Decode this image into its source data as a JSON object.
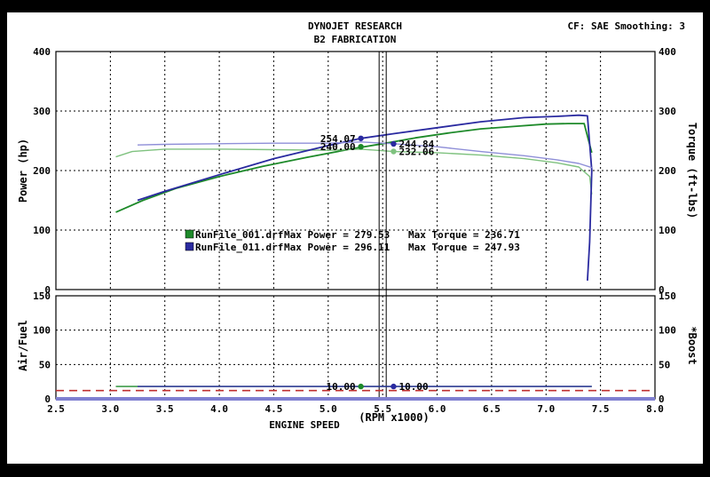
{
  "header": {
    "title": "DYNOJET RESEARCH",
    "subtitle": "B2 FABRICATION",
    "settings": "CF: SAE  Smoothing: 3"
  },
  "colors": {
    "background_frame": "#000000",
    "paper": "#ffffff",
    "run1": "#1e8a2a",
    "run1_light": "#7fc27f",
    "run2": "#2a2aa0",
    "run2_light": "#8f8fd8",
    "boost_dashed": "#c03030",
    "axis_text": "#000000"
  },
  "chart_data": [
    {
      "type": "line",
      "panel": "power-torque",
      "xlabel": "ENGINE SPEED",
      "xunit": "(RPM x1000)",
      "ylabel_left": "Power (hp)",
      "ylabel_right": "Torque (ft-lbs)",
      "xlim": [
        2.5,
        8.0
      ],
      "ylim": [
        0,
        400
      ],
      "xticks": [
        "2.5",
        "3.0",
        "3.5",
        "4.0",
        "4.5",
        "5.0",
        "5.5",
        "6.0",
        "6.5",
        "7.0",
        "7.5",
        "8.0"
      ],
      "yticks_left": [
        "0",
        "100",
        "200",
        "300",
        "400"
      ],
      "yticks_right": [
        "0",
        "100",
        "200",
        "300",
        "400"
      ],
      "grid": true,
      "cursor_x": 5.5,
      "series": [
        {
          "name": "RunFile_001.drf",
          "kind": "power",
          "color": "#1e8a2a",
          "x": [
            3.05,
            3.3,
            3.6,
            4.0,
            4.4,
            4.8,
            5.2,
            5.5,
            5.8,
            6.1,
            6.4,
            6.7,
            7.0,
            7.2,
            7.35,
            7.42
          ],
          "y": [
            130,
            150,
            170,
            190,
            207,
            222,
            236,
            245,
            255,
            263,
            270,
            274,
            278,
            279,
            279,
            230
          ]
        },
        {
          "name": "RunFile_001.drf",
          "kind": "torque",
          "color": "#7fc27f",
          "x": [
            3.05,
            3.2,
            3.5,
            4.0,
            4.5,
            5.0,
            5.3,
            5.6,
            6.0,
            6.4,
            6.8,
            7.1,
            7.3,
            7.4,
            7.42
          ],
          "y": [
            223,
            232,
            236,
            236,
            235,
            234,
            236,
            232,
            230,
            226,
            220,
            213,
            206,
            190,
            160
          ]
        },
        {
          "name": "RunFile_011.drf",
          "kind": "power",
          "color": "#2a2aa0",
          "x": [
            3.25,
            3.5,
            4.0,
            4.5,
            5.0,
            5.3,
            5.6,
            6.0,
            6.4,
            6.8,
            7.1,
            7.3,
            7.38,
            7.42,
            7.4,
            7.38
          ],
          "y": [
            150,
            165,
            193,
            220,
            242,
            254,
            262,
            272,
            282,
            289,
            291,
            293,
            292,
            200,
            80,
            15
          ]
        },
        {
          "name": "RunFile_011.drf",
          "kind": "torque",
          "color": "#8f8fd8",
          "x": [
            3.25,
            3.5,
            4.0,
            4.5,
            5.0,
            5.3,
            5.6,
            6.0,
            6.4,
            6.8,
            7.1,
            7.3,
            7.42
          ],
          "y": [
            243,
            244,
            245,
            246,
            246,
            248,
            245,
            240,
            232,
            225,
            218,
            212,
            205
          ]
        }
      ],
      "cursor_markers": [
        {
          "label": "254.07",
          "x": 5.3,
          "y": 254.07,
          "color": "#2a2aa0",
          "side": "left"
        },
        {
          "label": "240.00",
          "x": 5.3,
          "y": 240.0,
          "color": "#1e8a2a",
          "side": "left"
        },
        {
          "label": "244.84",
          "x": 5.6,
          "y": 244.84,
          "color": "#2a2aa0",
          "side": "right"
        },
        {
          "label": "232.06",
          "x": 5.6,
          "y": 232.06,
          "color": "#7fc27f",
          "side": "right"
        }
      ],
      "legend": [
        {
          "file": "RunFile_001.drf",
          "power_text": "Max Power = 279.53",
          "torque_text": "Max Torque = 236.71",
          "color": "#1e8a2a"
        },
        {
          "file": "RunFile_011.drf",
          "power_text": "Max Power = 296.11",
          "torque_text": "Max Torque = 247.93",
          "color": "#2a2aa0"
        }
      ]
    },
    {
      "type": "line",
      "panel": "airfuel-boost",
      "ylabel_left": "Air/Fuel",
      "ylabel_right": "*Boost",
      "xlim": [
        2.5,
        8.0
      ],
      "ylim": [
        0,
        150
      ],
      "yticks_left": [
        "0",
        "50",
        "100",
        "150"
      ],
      "yticks_right": [
        "0",
        "50",
        "100",
        "150"
      ],
      "grid": true,
      "series": [
        {
          "name": "RunFile_001.drf",
          "kind": "airfuel",
          "color": "#1e8a2a",
          "x": [
            3.05,
            7.42
          ],
          "y": [
            18,
            18
          ]
        },
        {
          "name": "RunFile_011.drf",
          "kind": "airfuel",
          "color": "#2a2aa0",
          "x": [
            3.25,
            7.42
          ],
          "y": [
            18,
            18
          ]
        },
        {
          "name": "boost",
          "kind": "boost",
          "color": "#c03030",
          "x": [
            2.5,
            8.0
          ],
          "y": [
            12,
            12
          ],
          "dashed": true
        }
      ],
      "cursor_markers": [
        {
          "label": "10.00",
          "x": 5.3,
          "y": 18,
          "color": "#1e8a2a",
          "side": "left"
        },
        {
          "label": "10.00",
          "x": 5.6,
          "y": 18,
          "color": "#2a2aa0",
          "side": "right"
        }
      ]
    }
  ]
}
